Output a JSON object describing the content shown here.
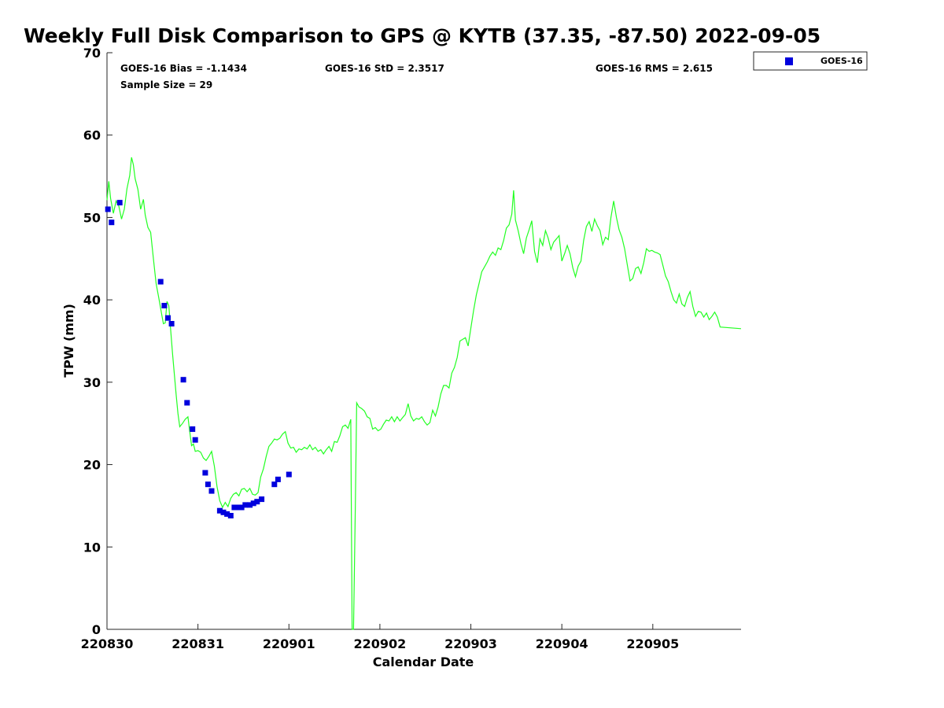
{
  "chart_data": {
    "type": "scatter",
    "title": "Weekly Full Disk Comparison to GPS @ KYTB (37.35, -87.50) 2022-09-05",
    "xlabel": "Calendar Date",
    "ylabel": "TPW (mm)",
    "ylim": [
      0,
      70
    ],
    "yticks": [
      "0",
      "10",
      "20",
      "30",
      "40",
      "50",
      "60",
      "70"
    ],
    "xlim": [
      0,
      6.97
    ],
    "xticks": [
      {
        "label": "220830",
        "x": 0
      },
      {
        "label": "220831",
        "x": 1
      },
      {
        "label": "220901",
        "x": 2
      },
      {
        "label": "220902",
        "x": 3
      },
      {
        "label": "220903",
        "x": 4
      },
      {
        "label": "220904",
        "x": 5
      },
      {
        "label": "220905",
        "x": 6
      }
    ],
    "grid": false,
    "legend_position": "top-right",
    "legend": [
      "GOES-16"
    ],
    "stats": {
      "bias": "GOES-16 Bias = -1.1434",
      "std": "GOES-16 StD = 2.3517",
      "rms": "GOES-16 RMS = 2.615",
      "sample": "Sample Size = 29"
    },
    "series": [
      {
        "name": "GOES-16",
        "kind": "markers",
        "color": "#0000dd",
        "marker": "square",
        "points": [
          [
            0.01,
            51.0
          ],
          [
            0.05,
            49.4
          ],
          [
            0.14,
            51.8
          ],
          [
            0.59,
            42.2
          ],
          [
            0.63,
            39.3
          ],
          [
            0.67,
            37.8
          ],
          [
            0.71,
            37.1
          ],
          [
            0.84,
            30.3
          ],
          [
            0.88,
            27.5
          ],
          [
            0.94,
            24.3
          ],
          [
            0.97,
            23.0
          ],
          [
            1.08,
            19.0
          ],
          [
            1.11,
            17.6
          ],
          [
            1.15,
            16.8
          ],
          [
            1.24,
            14.4
          ],
          [
            1.28,
            14.2
          ],
          [
            1.32,
            14.0
          ],
          [
            1.36,
            13.8
          ],
          [
            1.4,
            14.8
          ],
          [
            1.44,
            14.8
          ],
          [
            1.48,
            14.8
          ],
          [
            1.52,
            15.1
          ],
          [
            1.57,
            15.1
          ],
          [
            1.61,
            15.3
          ],
          [
            1.65,
            15.5
          ],
          [
            1.7,
            15.8
          ],
          [
            1.84,
            17.6
          ],
          [
            1.88,
            18.2
          ],
          [
            2.0,
            18.8
          ]
        ]
      },
      {
        "kind": "line",
        "color": "#22ff22",
        "points": [
          [
            0.0,
            52.1
          ],
          [
            0.02,
            54.4
          ],
          [
            0.04,
            52.3
          ],
          [
            0.07,
            50.5
          ],
          [
            0.1,
            52.0
          ],
          [
            0.13,
            51.4
          ],
          [
            0.16,
            49.8
          ],
          [
            0.19,
            51.0
          ],
          [
            0.22,
            53.5
          ],
          [
            0.25,
            55.1
          ],
          [
            0.27,
            57.3
          ],
          [
            0.29,
            56.4
          ],
          [
            0.31,
            54.7
          ],
          [
            0.34,
            53.4
          ],
          [
            0.37,
            51.0
          ],
          [
            0.4,
            52.2
          ],
          [
            0.42,
            50.3
          ],
          [
            0.45,
            48.8
          ],
          [
            0.48,
            48.2
          ],
          [
            0.51,
            45.0
          ],
          [
            0.54,
            42.0
          ],
          [
            0.57,
            40.2
          ],
          [
            0.6,
            38.3
          ],
          [
            0.62,
            37.1
          ],
          [
            0.64,
            37.2
          ],
          [
            0.66,
            39.8
          ],
          [
            0.68,
            39.3
          ],
          [
            0.7,
            36.4
          ],
          [
            0.72,
            33.5
          ],
          [
            0.74,
            31.0
          ],
          [
            0.76,
            28.5
          ],
          [
            0.78,
            26.2
          ],
          [
            0.8,
            24.6
          ],
          [
            0.83,
            25.0
          ],
          [
            0.86,
            25.5
          ],
          [
            0.89,
            25.8
          ],
          [
            0.91,
            24.0
          ],
          [
            0.93,
            22.3
          ],
          [
            0.95,
            22.5
          ],
          [
            0.97,
            21.6
          ],
          [
            1.0,
            21.7
          ],
          [
            1.03,
            21.5
          ],
          [
            1.06,
            20.8
          ],
          [
            1.09,
            20.5
          ],
          [
            1.12,
            21.0
          ],
          [
            1.15,
            21.6
          ],
          [
            1.18,
            19.8
          ],
          [
            1.21,
            17.3
          ],
          [
            1.24,
            15.6
          ],
          [
            1.27,
            14.8
          ],
          [
            1.3,
            15.4
          ],
          [
            1.33,
            14.9
          ],
          [
            1.36,
            15.9
          ],
          [
            1.39,
            16.4
          ],
          [
            1.42,
            16.6
          ],
          [
            1.45,
            16.2
          ],
          [
            1.48,
            17.0
          ],
          [
            1.51,
            17.1
          ],
          [
            1.54,
            16.7
          ],
          [
            1.57,
            17.1
          ],
          [
            1.6,
            16.4
          ],
          [
            1.63,
            16.3
          ],
          [
            1.66,
            16.6
          ],
          [
            1.69,
            18.5
          ],
          [
            1.72,
            19.5
          ],
          [
            1.75,
            21.0
          ],
          [
            1.78,
            22.2
          ],
          [
            1.81,
            22.6
          ],
          [
            1.84,
            23.1
          ],
          [
            1.87,
            23.0
          ],
          [
            1.9,
            23.2
          ],
          [
            1.93,
            23.7
          ],
          [
            1.96,
            24.0
          ],
          [
            1.99,
            22.6
          ],
          [
            2.02,
            22.0
          ],
          [
            2.05,
            22.1
          ],
          [
            2.08,
            21.5
          ],
          [
            2.11,
            21.9
          ],
          [
            2.14,
            21.8
          ],
          [
            2.17,
            22.1
          ],
          [
            2.2,
            21.9
          ],
          [
            2.23,
            22.4
          ],
          [
            2.26,
            21.8
          ],
          [
            2.29,
            22.1
          ],
          [
            2.32,
            21.6
          ],
          [
            2.35,
            21.8
          ],
          [
            2.38,
            21.3
          ],
          [
            2.41,
            21.8
          ],
          [
            2.44,
            22.2
          ],
          [
            2.47,
            21.6
          ],
          [
            2.5,
            22.8
          ],
          [
            2.53,
            22.7
          ],
          [
            2.56,
            23.5
          ],
          [
            2.59,
            24.6
          ],
          [
            2.62,
            24.8
          ],
          [
            2.65,
            24.4
          ],
          [
            2.68,
            25.5
          ],
          [
            2.695,
            0
          ],
          [
            2.71,
            0
          ],
          [
            2.73,
            15.0
          ],
          [
            2.745,
            27.5
          ],
          [
            2.77,
            27.0
          ],
          [
            2.8,
            26.8
          ],
          [
            2.83,
            26.5
          ],
          [
            2.86,
            25.8
          ],
          [
            2.89,
            25.6
          ],
          [
            2.92,
            24.3
          ],
          [
            2.95,
            24.5
          ],
          [
            2.98,
            24.1
          ],
          [
            3.01,
            24.3
          ],
          [
            3.04,
            24.9
          ],
          [
            3.07,
            25.4
          ],
          [
            3.1,
            25.3
          ],
          [
            3.13,
            25.8
          ],
          [
            3.16,
            25.2
          ],
          [
            3.19,
            25.8
          ],
          [
            3.22,
            25.3
          ],
          [
            3.25,
            25.7
          ],
          [
            3.28,
            26.1
          ],
          [
            3.31,
            27.4
          ],
          [
            3.34,
            25.9
          ],
          [
            3.37,
            25.3
          ],
          [
            3.4,
            25.6
          ],
          [
            3.43,
            25.5
          ],
          [
            3.46,
            25.8
          ],
          [
            3.49,
            25.2
          ],
          [
            3.52,
            24.8
          ],
          [
            3.55,
            25.1
          ],
          [
            3.58,
            26.6
          ],
          [
            3.61,
            25.9
          ],
          [
            3.64,
            27.0
          ],
          [
            3.67,
            28.6
          ],
          [
            3.7,
            29.6
          ],
          [
            3.73,
            29.6
          ],
          [
            3.76,
            29.3
          ],
          [
            3.79,
            31.1
          ],
          [
            3.82,
            31.8
          ],
          [
            3.85,
            33.0
          ],
          [
            3.88,
            35.0
          ],
          [
            3.91,
            35.2
          ],
          [
            3.94,
            35.4
          ],
          [
            3.97,
            34.4
          ],
          [
            4.0,
            36.6
          ],
          [
            4.03,
            38.7
          ],
          [
            4.06,
            40.6
          ],
          [
            4.09,
            42.0
          ],
          [
            4.12,
            43.4
          ],
          [
            4.15,
            44.0
          ],
          [
            4.18,
            44.6
          ],
          [
            4.21,
            45.3
          ],
          [
            4.24,
            45.8
          ],
          [
            4.27,
            45.4
          ],
          [
            4.3,
            46.3
          ],
          [
            4.33,
            46.1
          ],
          [
            4.36,
            47.2
          ],
          [
            4.39,
            48.7
          ],
          [
            4.42,
            49.1
          ],
          [
            4.45,
            50.4
          ],
          [
            4.47,
            53.3
          ],
          [
            4.49,
            49.7
          ],
          [
            4.52,
            48.4
          ],
          [
            4.55,
            46.8
          ],
          [
            4.58,
            45.6
          ],
          [
            4.61,
            47.5
          ],
          [
            4.64,
            48.5
          ],
          [
            4.67,
            49.6
          ],
          [
            4.7,
            45.9
          ],
          [
            4.73,
            44.5
          ],
          [
            4.76,
            47.4
          ],
          [
            4.79,
            46.6
          ],
          [
            4.82,
            48.4
          ],
          [
            4.85,
            47.5
          ],
          [
            4.88,
            46.1
          ],
          [
            4.91,
            47.0
          ],
          [
            4.94,
            47.4
          ],
          [
            4.97,
            47.8
          ],
          [
            5.0,
            44.7
          ],
          [
            5.03,
            45.6
          ],
          [
            5.06,
            46.6
          ],
          [
            5.09,
            45.6
          ],
          [
            5.12,
            43.9
          ],
          [
            5.15,
            42.8
          ],
          [
            5.18,
            44.1
          ],
          [
            5.21,
            44.7
          ],
          [
            5.24,
            47.2
          ],
          [
            5.27,
            48.9
          ],
          [
            5.3,
            49.5
          ],
          [
            5.33,
            48.3
          ],
          [
            5.36,
            49.8
          ],
          [
            5.39,
            49.0
          ],
          [
            5.42,
            48.4
          ],
          [
            5.45,
            46.7
          ],
          [
            5.48,
            47.6
          ],
          [
            5.51,
            47.3
          ],
          [
            5.54,
            50.0
          ],
          [
            5.57,
            52.0
          ],
          [
            5.6,
            50.0
          ],
          [
            5.63,
            48.5
          ],
          [
            5.66,
            47.6
          ],
          [
            5.69,
            46.2
          ],
          [
            5.72,
            44.2
          ],
          [
            5.75,
            42.3
          ],
          [
            5.78,
            42.6
          ],
          [
            5.81,
            43.8
          ],
          [
            5.84,
            44.0
          ],
          [
            5.87,
            43.2
          ],
          [
            5.9,
            44.5
          ],
          [
            5.93,
            46.2
          ],
          [
            5.96,
            45.9
          ],
          [
            5.99,
            46.0
          ],
          [
            6.02,
            45.8
          ],
          [
            6.05,
            45.7
          ],
          [
            6.08,
            45.5
          ],
          [
            6.11,
            44.2
          ],
          [
            6.14,
            42.9
          ],
          [
            6.17,
            42.2
          ],
          [
            6.2,
            41.0
          ],
          [
            6.23,
            40.0
          ],
          [
            6.26,
            39.6
          ],
          [
            6.29,
            40.7
          ],
          [
            6.32,
            39.5
          ],
          [
            6.35,
            39.2
          ],
          [
            6.38,
            40.3
          ],
          [
            6.41,
            41.0
          ],
          [
            6.44,
            39.2
          ],
          [
            6.47,
            38.0
          ],
          [
            6.5,
            38.6
          ],
          [
            6.53,
            38.5
          ],
          [
            6.56,
            37.9
          ],
          [
            6.59,
            38.4
          ],
          [
            6.62,
            37.6
          ],
          [
            6.65,
            38.0
          ],
          [
            6.68,
            38.5
          ],
          [
            6.71,
            37.9
          ],
          [
            6.74,
            36.7
          ],
          [
            6.97,
            36.5
          ]
        ]
      }
    ]
  }
}
